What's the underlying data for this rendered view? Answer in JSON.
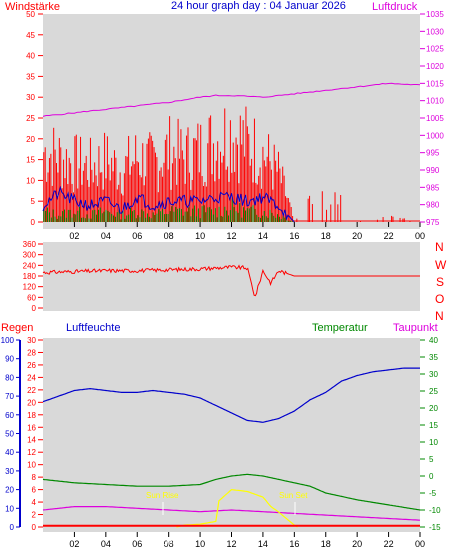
{
  "header": {
    "left_label": "Windstärke",
    "title": "24 hour graph day : 04 Januar 2026",
    "right_label": "Luftdruck"
  },
  "colors": {
    "plot_bg": "#D9D9D9",
    "panel_bg": "#FFFFFF",
    "red": "#FF0000",
    "green": "#008800",
    "blue": "#0000CC",
    "magenta": "#DD00DD",
    "yellow": "#FFFF00"
  },
  "chart_data": [
    {
      "type": "line",
      "name": "top-panel",
      "x_ticks": [
        "02",
        "04",
        "06",
        "08",
        "10",
        "12",
        "14",
        "16",
        "18",
        "20",
        "22",
        "00"
      ],
      "x_range_hours": [
        0,
        24
      ],
      "y_left": {
        "label": "Windstärke",
        "range": [
          0,
          50
        ],
        "ticks": [
          0,
          5,
          10,
          15,
          20,
          25,
          30,
          35,
          40,
          45,
          50
        ]
      },
      "y_right": {
        "label": "Luftdruck",
        "range": [
          975,
          1035
        ],
        "ticks": [
          975,
          980,
          985,
          990,
          995,
          1000,
          1005,
          1010,
          1015,
          1020,
          1025,
          1030,
          1035
        ]
      },
      "series": [
        {
          "color": "magenta",
          "axis": "right",
          "x": [
            0,
            2,
            4,
            6,
            8,
            10,
            11,
            12,
            14,
            16,
            18,
            20,
            22,
            24
          ],
          "values": [
            1005.5,
            1006.5,
            1007.5,
            1008.5,
            1009.5,
            1011,
            1011.5,
            1011.5,
            1011,
            1012,
            1013,
            1014,
            1015,
            1014.5
          ]
        },
        {
          "color": "red",
          "axis": "left",
          "style": "gust-bars",
          "x": [
            0,
            1,
            2,
            3,
            4,
            5,
            6,
            7,
            8,
            9,
            10,
            11,
            12,
            13,
            14,
            15,
            15.5,
            16,
            17,
            18,
            19,
            20,
            22,
            24
          ],
          "values": [
            22,
            20,
            18,
            17,
            19,
            16,
            20,
            18,
            22,
            20,
            22,
            25,
            28,
            24,
            21,
            15,
            8,
            0,
            7,
            7,
            6,
            0,
            2,
            0
          ]
        },
        {
          "color": "blue",
          "axis": "left",
          "x": [
            0,
            1,
            2,
            3,
            4,
            5,
            6,
            7,
            8,
            9,
            10,
            11,
            12,
            13,
            14,
            15,
            15.5,
            16
          ],
          "values": [
            4,
            7,
            5,
            4,
            5,
            3,
            6,
            4,
            5,
            5,
            5,
            6,
            6,
            5,
            6,
            4,
            2,
            0
          ]
        },
        {
          "color": "green",
          "axis": "left",
          "style": "bars",
          "x": [
            0,
            1,
            2,
            3,
            4,
            5,
            6,
            7,
            8,
            9,
            10,
            11,
            12,
            13,
            14,
            15,
            15.5,
            16
          ],
          "values": [
            3,
            2,
            3,
            2,
            3,
            2,
            3,
            2,
            3,
            3,
            3,
            3,
            4,
            3,
            3,
            2,
            1,
            0
          ]
        }
      ]
    },
    {
      "type": "line",
      "name": "wind-direction-panel",
      "x_range_hours": [
        0,
        24
      ],
      "y_left": {
        "range": [
          0,
          360
        ],
        "ticks": [
          0,
          60,
          120,
          180,
          240,
          300,
          360
        ]
      },
      "y_right_labels": [
        "N",
        "W",
        "S",
        "O",
        "N"
      ],
      "series": [
        {
          "color": "red",
          "x": [
            0,
            2,
            4,
            6,
            8,
            10,
            11,
            12,
            13,
            13.5,
            14,
            14.5,
            15,
            16,
            18,
            20,
            22,
            24
          ],
          "values": [
            200,
            205,
            210,
            210,
            215,
            220,
            225,
            230,
            225,
            60,
            210,
            140,
            210,
            180,
            180,
            180,
            180,
            180
          ]
        }
      ]
    },
    {
      "type": "line",
      "name": "bottom-panel",
      "x_ticks": [
        "02",
        "04",
        "06",
        "08",
        "10",
        "12",
        "14",
        "16",
        "18",
        "20",
        "22",
        "00"
      ],
      "x_range_hours": [
        0,
        24
      ],
      "labels": {
        "regen": "Regen",
        "luftfeuchte": "Luftfeuchte",
        "temperatur": "Temperatur",
        "taupunkt": "Taupunkt"
      },
      "axis_blue": {
        "range": [
          0,
          100
        ],
        "ticks": [
          0,
          10,
          20,
          30,
          40,
          50,
          60,
          70,
          80,
          90,
          100
        ]
      },
      "axis_red": {
        "range": [
          0,
          30
        ],
        "ticks": [
          0,
          2,
          4,
          6,
          8,
          10,
          12,
          14,
          16,
          18,
          20,
          22,
          24,
          26,
          28,
          30
        ]
      },
      "axis_green": {
        "range": [
          -15,
          40
        ],
        "ticks": [
          -15,
          -10,
          -5,
          0,
          5,
          10,
          15,
          20,
          25,
          30,
          35,
          40
        ]
      },
      "annotations": {
        "sun_rise": "Sun Rise",
        "sun_set": "Sun Set",
        "sun_dec": "Sun Dec"
      },
      "series": [
        {
          "color": "blue",
          "axis": "blue",
          "x": [
            0,
            1,
            2,
            3,
            4,
            5,
            6,
            7,
            8,
            9,
            10,
            11,
            12,
            13,
            14,
            15,
            16,
            17,
            18,
            19,
            20,
            21,
            22,
            23,
            24
          ],
          "values": [
            67,
            70,
            73,
            74,
            73,
            72,
            72,
            73,
            72,
            71,
            69,
            65,
            61,
            57,
            56,
            58,
            62,
            68,
            72,
            78,
            81,
            83,
            84,
            85,
            85
          ]
        },
        {
          "color": "green",
          "axis": "green",
          "x": [
            0,
            2,
            4,
            6,
            8,
            10,
            11,
            12,
            13,
            14,
            15,
            16,
            17,
            18,
            20,
            22,
            24
          ],
          "values": [
            -1,
            -2,
            -2.5,
            -3,
            -3,
            -2.5,
            -1,
            0,
            0.5,
            0,
            -1,
            -2,
            -3,
            -5,
            -7,
            -8.5,
            -10
          ]
        },
        {
          "color": "magenta",
          "axis": "green",
          "x": [
            0,
            2,
            4,
            6,
            8,
            10,
            12,
            14,
            16,
            18,
            20,
            22,
            24
          ],
          "values": [
            -10,
            -9,
            -9,
            -9.5,
            -10,
            -10.5,
            -10,
            -10.5,
            -11,
            -11.5,
            -12,
            -12.5,
            -13
          ]
        },
        {
          "color": "yellow",
          "axis": "blue",
          "x": [
            8.5,
            9,
            10,
            11,
            11.2,
            12,
            13,
            14,
            14.5,
            15,
            16,
            16.2
          ],
          "values": [
            0,
            1,
            1.5,
            3,
            14,
            20,
            19,
            16,
            11,
            8,
            1,
            0
          ]
        },
        {
          "color": "red",
          "axis": "red",
          "x": [
            0,
            24
          ],
          "values": [
            0.2,
            0.2
          ]
        }
      ]
    }
  ]
}
